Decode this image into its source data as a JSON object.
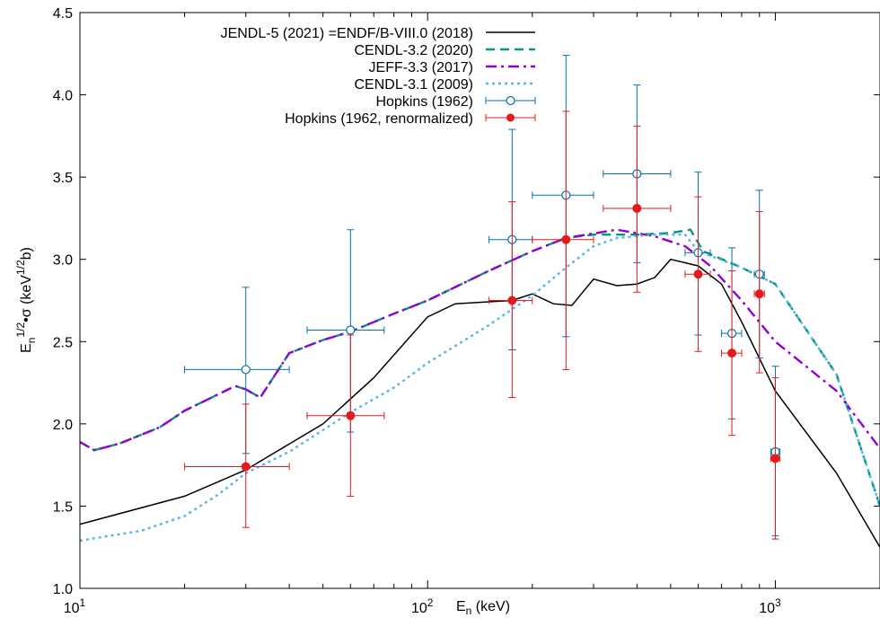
{
  "chart_data": {
    "type": "line",
    "xlabel": {
      "base": "E",
      "sub": "n",
      "tail": " (keV)"
    },
    "ylabel": {
      "base": "E",
      "sub": "n",
      "sup1": "1/2",
      "mid": "•σ (keV",
      "sup2": "1/2",
      "tail": "b)"
    },
    "x_scale": "log",
    "xlim": [
      10,
      2000
    ],
    "ylim": [
      1.0,
      4.5
    ],
    "x_ticks": [
      {
        "value": 10,
        "base": "10",
        "exp": "1"
      },
      {
        "value": 100,
        "base": "10",
        "exp": "2"
      },
      {
        "value": 1000,
        "base": "10",
        "exp": "3"
      }
    ],
    "y_ticks": [
      "1.0",
      "1.5",
      "2.0",
      "2.5",
      "3.0",
      "3.5",
      "4.0",
      "4.5"
    ],
    "grid": false,
    "legend_position": "top-left",
    "series": [
      {
        "name": "JENDL-5 (2021) =ENDF/B-VIII.0 (2018)",
        "style": "solid",
        "color": "#000000",
        "points": [
          [
            10,
            1.39
          ],
          [
            20,
            1.56
          ],
          [
            30,
            1.72
          ],
          [
            50,
            2.0
          ],
          [
            70,
            2.28
          ],
          [
            100,
            2.65
          ],
          [
            120,
            2.73
          ],
          [
            175,
            2.75
          ],
          [
            200,
            2.79
          ],
          [
            230,
            2.73
          ],
          [
            260,
            2.72
          ],
          [
            300,
            2.88
          ],
          [
            350,
            2.84
          ],
          [
            400,
            2.85
          ],
          [
            450,
            2.89
          ],
          [
            500,
            3.0
          ],
          [
            600,
            2.96
          ],
          [
            700,
            2.85
          ],
          [
            800,
            2.62
          ],
          [
            1000,
            2.2
          ],
          [
            1500,
            1.7
          ],
          [
            2000,
            1.25
          ]
        ]
      },
      {
        "name": "CENDL-3.2 (2020)",
        "style": "dashed",
        "color": "#009980",
        "points": [
          [
            10,
            1.89
          ],
          [
            11,
            1.84
          ],
          [
            13,
            1.88
          ],
          [
            17,
            1.98
          ],
          [
            20,
            2.08
          ],
          [
            25,
            2.18
          ],
          [
            28,
            2.23
          ],
          [
            30,
            2.21
          ],
          [
            33,
            2.16
          ],
          [
            40,
            2.43
          ],
          [
            50,
            2.51
          ],
          [
            60,
            2.56
          ],
          [
            80,
            2.67
          ],
          [
            100,
            2.75
          ],
          [
            150,
            2.93
          ],
          [
            200,
            3.05
          ],
          [
            250,
            3.13
          ],
          [
            300,
            3.15
          ],
          [
            400,
            3.15
          ],
          [
            500,
            3.16
          ],
          [
            570,
            3.18
          ],
          [
            620,
            3.05
          ],
          [
            800,
            2.95
          ],
          [
            1000,
            2.85
          ],
          [
            1500,
            2.3
          ],
          [
            2000,
            1.5
          ]
        ]
      },
      {
        "name": "JEFF-3.3 (2017)",
        "style": "dashdot",
        "color": "#9400d3",
        "points": [
          [
            10,
            1.89
          ],
          [
            11,
            1.84
          ],
          [
            13,
            1.88
          ],
          [
            17,
            1.98
          ],
          [
            20,
            2.08
          ],
          [
            25,
            2.18
          ],
          [
            28,
            2.23
          ],
          [
            30,
            2.21
          ],
          [
            33,
            2.16
          ],
          [
            40,
            2.43
          ],
          [
            50,
            2.51
          ],
          [
            60,
            2.56
          ],
          [
            80,
            2.67
          ],
          [
            100,
            2.75
          ],
          [
            150,
            2.93
          ],
          [
            200,
            3.05
          ],
          [
            250,
            3.13
          ],
          [
            350,
            3.18
          ],
          [
            450,
            3.14
          ],
          [
            550,
            3.08
          ],
          [
            650,
            2.96
          ],
          [
            800,
            2.75
          ],
          [
            1000,
            2.5
          ],
          [
            1500,
            2.2
          ],
          [
            2000,
            1.85
          ]
        ]
      },
      {
        "name": "CENDL-3.1 (2009)",
        "style": "dotted",
        "color": "#56b4e9",
        "points": [
          [
            10,
            1.29
          ],
          [
            15,
            1.35
          ],
          [
            20,
            1.44
          ],
          [
            25,
            1.57
          ],
          [
            30,
            1.7
          ],
          [
            40,
            1.83
          ],
          [
            60,
            2.07
          ],
          [
            80,
            2.22
          ],
          [
            100,
            2.37
          ],
          [
            150,
            2.6
          ],
          [
            200,
            2.78
          ],
          [
            250,
            2.95
          ],
          [
            300,
            3.08
          ],
          [
            350,
            3.13
          ],
          [
            450,
            3.15
          ],
          [
            550,
            3.15
          ],
          [
            600,
            3.05
          ],
          [
            800,
            2.95
          ],
          [
            1000,
            2.85
          ],
          [
            1500,
            2.3
          ],
          [
            2000,
            1.5
          ]
        ]
      }
    ],
    "error_series": [
      {
        "name": "Hopkins (1962)",
        "marker": "open-circle",
        "color": "#0072b2",
        "points": [
          {
            "x": 30,
            "xlo": 20,
            "xhi": 40,
            "y": 2.33,
            "ylo": 1.82,
            "yhi": 2.83
          },
          {
            "x": 60,
            "xlo": 45,
            "xhi": 75,
            "y": 2.57,
            "ylo": 1.95,
            "yhi": 3.18
          },
          {
            "x": 175,
            "xlo": 150,
            "xhi": 200,
            "y": 3.12,
            "ylo": 2.45,
            "yhi": 3.79
          },
          {
            "x": 250,
            "xlo": 200,
            "xhi": 300,
            "y": 3.39,
            "ylo": 2.53,
            "yhi": 4.24
          },
          {
            "x": 400,
            "xlo": 320,
            "xhi": 500,
            "y": 3.52,
            "ylo": 2.98,
            "yhi": 4.06
          },
          {
            "x": 600,
            "xlo": 550,
            "xhi": 650,
            "y": 3.04,
            "ylo": 2.54,
            "yhi": 3.53
          },
          {
            "x": 750,
            "xlo": 700,
            "xhi": 800,
            "y": 2.55,
            "ylo": 2.03,
            "yhi": 3.07
          },
          {
            "x": 900,
            "xlo": 870,
            "xhi": 930,
            "y": 2.91,
            "ylo": 2.4,
            "yhi": 3.42
          },
          {
            "x": 1000,
            "xlo": 970,
            "xhi": 1030,
            "y": 1.83,
            "ylo": 1.32,
            "yhi": 2.35
          }
        ]
      },
      {
        "name": "Hopkins (1962, renormalized)",
        "marker": "filled-circle",
        "color": "#e41a1c",
        "points": [
          {
            "x": 30,
            "xlo": 20,
            "xhi": 40,
            "y": 1.74,
            "ylo": 1.37,
            "yhi": 2.12
          },
          {
            "x": 60,
            "xlo": 45,
            "xhi": 75,
            "y": 2.05,
            "ylo": 1.56,
            "yhi": 2.54
          },
          {
            "x": 175,
            "xlo": 150,
            "xhi": 200,
            "y": 2.75,
            "ylo": 2.16,
            "yhi": 3.35
          },
          {
            "x": 250,
            "xlo": 200,
            "xhi": 300,
            "y": 3.12,
            "ylo": 2.33,
            "yhi": 3.9
          },
          {
            "x": 400,
            "xlo": 320,
            "xhi": 500,
            "y": 3.31,
            "ylo": 2.8,
            "yhi": 3.81
          },
          {
            "x": 600,
            "xlo": 550,
            "xhi": 650,
            "y": 2.91,
            "ylo": 2.44,
            "yhi": 3.38
          },
          {
            "x": 750,
            "xlo": 700,
            "xhi": 800,
            "y": 2.43,
            "ylo": 1.93,
            "yhi": 2.93
          },
          {
            "x": 900,
            "xlo": 870,
            "xhi": 930,
            "y": 2.79,
            "ylo": 2.31,
            "yhi": 3.29
          },
          {
            "x": 1000,
            "xlo": 970,
            "xhi": 1030,
            "y": 1.79,
            "ylo": 1.3,
            "yhi": 2.28
          }
        ]
      }
    ]
  }
}
